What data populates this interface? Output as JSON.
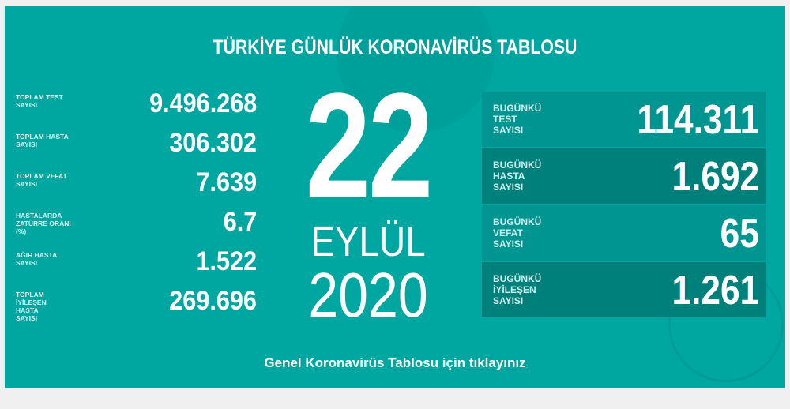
{
  "title": "TÜRKİYE GÜNLÜK KORONAVİRÜS TABLOSU",
  "totals": [
    {
      "label": "TOPLAM TEST SAYISI",
      "value": "9.496.268"
    },
    {
      "label": "TOPLAM HASTA SAYISI",
      "value": "306.302"
    },
    {
      "label": "TOPLAM VEFAT SAYISI",
      "value": "7.639"
    },
    {
      "label": "HASTALARDA ZATÜRRE ORANI (%)",
      "value": "6.7"
    },
    {
      "label": "AĞIR HASTA SAYISI",
      "value": "1.522"
    },
    {
      "label": "TOPLAM İYİLEŞEN HASTA SAYISI",
      "value": "269.696"
    }
  ],
  "date": {
    "day": "22",
    "month": "EYLÜL",
    "year": "2020"
  },
  "today": [
    {
      "label": "BUGÜNKÜ TEST SAYISI",
      "value": "114.311"
    },
    {
      "label": "BUGÜNKÜ HASTA SAYISI",
      "value": "1.692"
    },
    {
      "label": "BUGÜNKÜ VEFAT SAYISI",
      "value": "65"
    },
    {
      "label": "BUGÜNKÜ İYİLEŞEN SAYISI",
      "value": "1.261"
    }
  ],
  "link": "Genel Koronavirüs Tablosu için tıklayınız",
  "colors": {
    "bg": "#00a6a0",
    "row_light": "#009590",
    "row_dark": "#00807b"
  }
}
